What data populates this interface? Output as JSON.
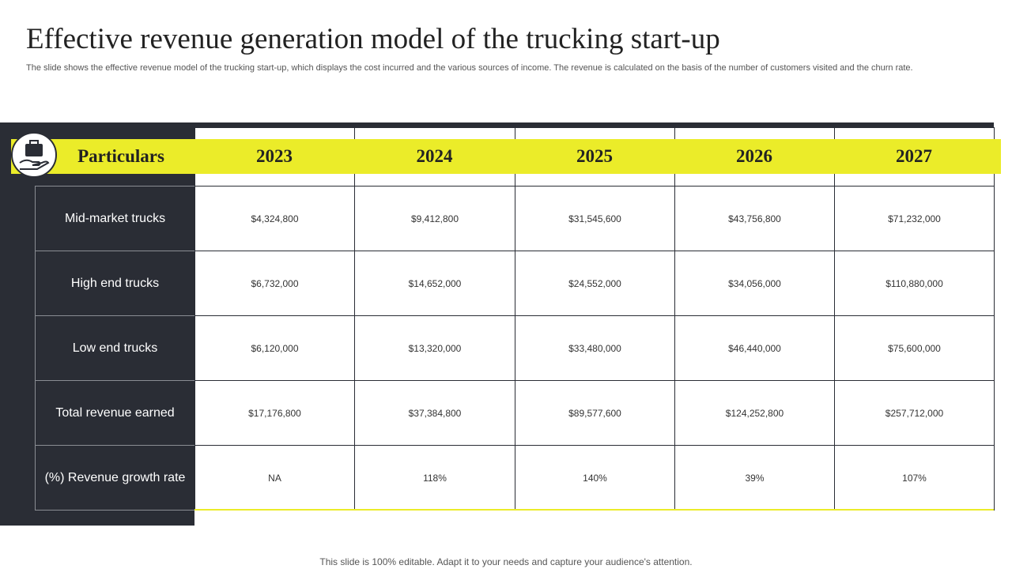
{
  "header": {
    "title": "Effective revenue generation model of the trucking start-up",
    "subtitle": "The slide shows the effective revenue model of the trucking start-up, which displays the cost incurred and the various sources of income. The revenue is calculated on the basis of the number of customers visited and the churn rate."
  },
  "table": {
    "columns": [
      "Particulars",
      "2023",
      "2024",
      "2025",
      "2026",
      "2027"
    ],
    "rows": [
      [
        "Mid-market trucks",
        "$4,324,800",
        "$9,412,800",
        "$31,545,600",
        "$43,756,800",
        "$71,232,000"
      ],
      [
        "High end trucks",
        "$6,732,000",
        "$14,652,000",
        "$24,552,000",
        "$34,056,000",
        "$110,880,000"
      ],
      [
        "Low end trucks",
        "$6,120,000",
        "$13,320,000",
        "$33,480,000",
        "$46,440,000",
        "$75,600,000"
      ],
      [
        "Total revenue  earned",
        "$17,176,800",
        "$37,384,800",
        "$89,577,600",
        "$124,252,800",
        "$257,712,000"
      ],
      [
        "(%) Revenue growth rate",
        "NA",
        "118%",
        "140%",
        "39%",
        "107%"
      ]
    ]
  },
  "footer": "This slide is 100% editable. Adapt it to your needs and capture your audience's attention."
}
